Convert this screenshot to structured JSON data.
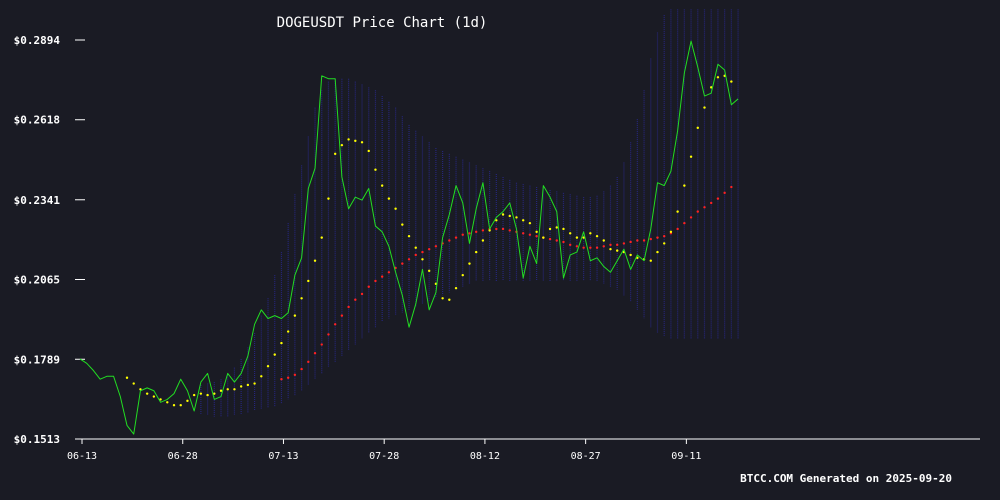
{
  "chart_data": {
    "type": "line",
    "title": "DOGEUSDT Price Chart (1d)",
    "xlabel": "",
    "ylabel": "",
    "ylim": [
      0.1513,
      0.2894
    ],
    "yticks": [
      "$0.1513",
      "$0.1789",
      "$0.2065",
      "$0.2341",
      "$0.2618",
      "$0.2894"
    ],
    "ytick_values": [
      0.1513,
      0.1789,
      0.2065,
      0.2341,
      0.2618,
      0.2894
    ],
    "xticks": [
      "06-13",
      "06-28",
      "07-13",
      "07-28",
      "08-12",
      "08-27",
      "09-11"
    ],
    "start_date": "06-13",
    "grid": false,
    "legend": "none",
    "colors": {
      "price": "#22dd22",
      "fast_ma": "#ffff00",
      "slow_ma": "#ff2222",
      "band": "#26267a",
      "background": "#1a1b24",
      "text": "#ffffff",
      "axis": "#ffffff"
    },
    "series": [
      {
        "key": "price",
        "values": [
          0.179,
          0.1775,
          0.175,
          0.172,
          0.173,
          0.173,
          0.166,
          0.156,
          0.153,
          0.168,
          0.169,
          0.168,
          0.164,
          0.165,
          0.167,
          0.172,
          0.168,
          0.161,
          0.171,
          0.174,
          0.165,
          0.166,
          0.174,
          0.171,
          0.174,
          0.18,
          0.191,
          0.196,
          0.193,
          0.194,
          0.193,
          0.195,
          0.208,
          0.214,
          0.238,
          0.245,
          0.277,
          0.276,
          0.276,
          0.242,
          0.231,
          0.235,
          0.234,
          0.238,
          0.225,
          0.223,
          0.218,
          0.209,
          0.201,
          0.19,
          0.198,
          0.21,
          0.196,
          0.202,
          0.221,
          0.229,
          0.239,
          0.233,
          0.219,
          0.231,
          0.24,
          0.224,
          0.228,
          0.23,
          0.233,
          0.224,
          0.207,
          0.218,
          0.212,
          0.239,
          0.235,
          0.23,
          0.207,
          0.215,
          0.216,
          0.223,
          0.213,
          0.214,
          0.211,
          0.209,
          0.213,
          0.217,
          0.21,
          0.215,
          0.213,
          0.224,
          0.24,
          0.239,
          0.244,
          0.258,
          0.278,
          0.289,
          0.28,
          0.27,
          0.271,
          0.281,
          0.279,
          0.267,
          0.269
        ]
      },
      {
        "key": "fast_ma",
        "start_day": 7,
        "values": [
          0.1725,
          0.1705,
          0.1685,
          0.167,
          0.166,
          0.165,
          0.164,
          0.163,
          0.163,
          0.1645,
          0.1665,
          0.167,
          0.1665,
          0.167,
          0.168,
          0.1685,
          0.1685,
          0.1695,
          0.17,
          0.1705,
          0.173,
          0.1765,
          0.1805,
          0.1845,
          0.1885,
          0.194,
          0.2,
          0.206,
          0.213,
          0.221,
          0.2345,
          0.25,
          0.253,
          0.255,
          0.2545,
          0.254,
          0.251,
          0.2445,
          0.239,
          0.2345,
          0.231,
          0.2255,
          0.2215,
          0.2175,
          0.2135,
          0.2095,
          0.205,
          0.2,
          0.1995,
          0.2035,
          0.208,
          0.212,
          0.216,
          0.22,
          0.2235,
          0.227,
          0.229,
          0.2285,
          0.228,
          0.227,
          0.226,
          0.223,
          0.221,
          0.224,
          0.2245,
          0.224,
          0.2225,
          0.221,
          0.221,
          0.2225,
          0.2215,
          0.22,
          0.217,
          0.2165,
          0.216,
          0.215,
          0.214,
          0.2135,
          0.213,
          0.216,
          0.219,
          0.223,
          0.23,
          0.239,
          0.249,
          0.259,
          0.266,
          0.273,
          0.2765,
          0.277,
          0.275
        ]
      },
      {
        "key": "slow_ma",
        "start_day": 30,
        "values": [
          0.172,
          0.1725,
          0.1735,
          0.1755,
          0.178,
          0.181,
          0.184,
          0.1875,
          0.191,
          0.194,
          0.197,
          0.1995,
          0.2015,
          0.204,
          0.206,
          0.2075,
          0.209,
          0.2105,
          0.212,
          0.2135,
          0.215,
          0.216,
          0.217,
          0.218,
          0.219,
          0.22,
          0.221,
          0.222,
          0.2225,
          0.223,
          0.2235,
          0.224,
          0.224,
          0.224,
          0.2235,
          0.223,
          0.2225,
          0.222,
          0.2215,
          0.221,
          0.2205,
          0.22,
          0.2195,
          0.2185,
          0.218,
          0.2175,
          0.2175,
          0.2175,
          0.218,
          0.2185,
          0.2185,
          0.219,
          0.2195,
          0.22,
          0.22,
          0.2205,
          0.221,
          0.2215,
          0.2225,
          0.224,
          0.226,
          0.228,
          0.23,
          0.2315,
          0.233,
          0.2345,
          0.2365,
          0.2385
        ]
      }
    ],
    "band_range": {
      "start_day": 18,
      "upper": [
        0.17,
        0.1705,
        0.171,
        0.172,
        0.174,
        0.176,
        0.179,
        0.183,
        0.188,
        0.194,
        0.2,
        0.208,
        0.216,
        0.226,
        0.236,
        0.246,
        0.256,
        0.266,
        0.272,
        0.275,
        0.276,
        0.276,
        0.276,
        0.275,
        0.274,
        0.273,
        0.272,
        0.27,
        0.268,
        0.266,
        0.263,
        0.26,
        0.258,
        0.256,
        0.254,
        0.252,
        0.251,
        0.25,
        0.249,
        0.248,
        0.247,
        0.246,
        0.245,
        0.244,
        0.243,
        0.242,
        0.241,
        0.24,
        0.2395,
        0.239,
        0.2385,
        0.238,
        0.2375,
        0.237,
        0.2365,
        0.236,
        0.2355,
        0.235,
        0.235,
        0.2355,
        0.237,
        0.239,
        0.242,
        0.247,
        0.254,
        0.262,
        0.272,
        0.283,
        0.292,
        0.298,
        0.3,
        0.3,
        0.3,
        0.3,
        0.3,
        0.3,
        0.3,
        0.3,
        0.3,
        0.3,
        0.3
      ],
      "lower": [
        0.16,
        0.1595,
        0.159,
        0.159,
        0.159,
        0.1595,
        0.16,
        0.1605,
        0.161,
        0.1615,
        0.162,
        0.1625,
        0.1635,
        0.165,
        0.1665,
        0.168,
        0.17,
        0.172,
        0.174,
        0.176,
        0.178,
        0.18,
        0.182,
        0.184,
        0.186,
        0.188,
        0.19,
        0.192,
        0.193,
        0.194,
        0.195,
        0.196,
        0.197,
        0.198,
        0.199,
        0.2,
        0.201,
        0.202,
        0.203,
        0.204,
        0.205,
        0.206,
        0.206,
        0.206,
        0.206,
        0.206,
        0.206,
        0.206,
        0.206,
        0.206,
        0.206,
        0.206,
        0.206,
        0.206,
        0.206,
        0.206,
        0.206,
        0.206,
        0.206,
        0.206,
        0.205,
        0.204,
        0.203,
        0.201,
        0.199,
        0.196,
        0.193,
        0.19,
        0.188,
        0.187,
        0.186,
        0.186,
        0.186,
        0.186,
        0.186,
        0.186,
        0.186,
        0.186,
        0.186,
        0.186,
        0.186
      ]
    },
    "footer": "BTCC.COM Generated on 2025-09-20"
  }
}
